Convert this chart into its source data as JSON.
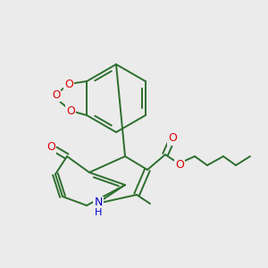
{
  "bg_color": "#ebebeb",
  "bond_color": "#2d6e2d",
  "bond_width": 1.4,
  "atom_colors": {
    "O": "#dd0000",
    "N": "#0000cc",
    "C": "#2d6e2d"
  }
}
